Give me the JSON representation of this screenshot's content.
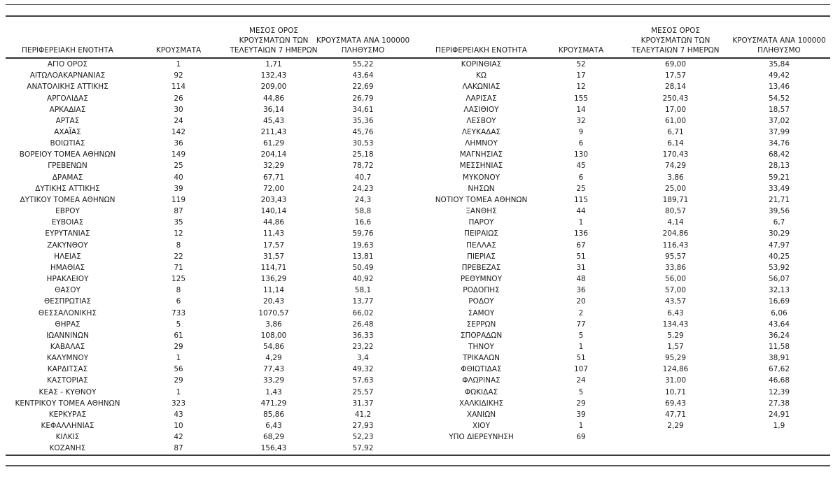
{
  "table": {
    "columns": [
      {
        "id": "region",
        "label": "ΠΕΡΙΦΕΡΕΙΑΚΗ ΕΝΟΤΗΤΑ"
      },
      {
        "id": "cases",
        "label": "ΚΡΟΥΣΜΑΤΑ"
      },
      {
        "id": "avg7",
        "label": "ΜΕΣΟΣ ΟΡΟΣ\nΚΡΟΥΣΜΑΤΩΝ ΤΩΝ\nΤΕΛΕΥΤΑΙΩΝ 7 ΗΜΕΡΩΝ"
      },
      {
        "id": "per100k",
        "label": "ΚΡΟΥΣΜΑΤΑ ΑΝΑ 100000\nΠΛΗΘΥΣΜΟ"
      }
    ],
    "left_rows": [
      [
        "ΑΓΙΟ ΟΡΟΣ",
        "1",
        "1,71",
        "55,22"
      ],
      [
        "ΑΙΤΩΛΟΑΚΑΡΝΑΝΙΑΣ",
        "92",
        "132,43",
        "43,64"
      ],
      [
        "ΑΝΑΤΟΛΙΚΗΣ ΑΤΤΙΚΗΣ",
        "114",
        "209,00",
        "22,69"
      ],
      [
        "ΑΡΓΟΛΙΔΑΣ",
        "26",
        "44,86",
        "26,79"
      ],
      [
        "ΑΡΚΑΔΙΑΣ",
        "30",
        "36,14",
        "34,61"
      ],
      [
        "ΑΡΤΑΣ",
        "24",
        "45,43",
        "35,36"
      ],
      [
        "ΑΧΑΪΑΣ",
        "142",
        "211,43",
        "45,76"
      ],
      [
        "ΒΟΙΩΤΙΑΣ",
        "36",
        "61,29",
        "30,53"
      ],
      [
        "ΒΟΡΕΙΟΥ ΤΟΜΕΑ ΑΘΗΝΩΝ",
        "149",
        "204,14",
        "25,18"
      ],
      [
        "ΓΡΕΒΕΝΩΝ",
        "25",
        "32,29",
        "78,72"
      ],
      [
        "ΔΡΑΜΑΣ",
        "40",
        "67,71",
        "40,7"
      ],
      [
        "ΔΥΤΙΚΗΣ ΑΤΤΙΚΗΣ",
        "39",
        "72,00",
        "24,23"
      ],
      [
        "ΔΥΤΙΚΟΥ ΤΟΜΕΑ ΑΘΗΝΩΝ",
        "119",
        "203,43",
        "24,3"
      ],
      [
        "ΕΒΡΟΥ",
        "87",
        "140,14",
        "58,8"
      ],
      [
        "ΕΥΒΟΙΑΣ",
        "35",
        "44,86",
        "16,6"
      ],
      [
        "ΕΥΡΥΤΑΝΙΑΣ",
        "12",
        "11,43",
        "59,76"
      ],
      [
        "ΖΑΚΥΝΘΟΥ",
        "8",
        "17,57",
        "19,63"
      ],
      [
        "ΗΛΕΙΑΣ",
        "22",
        "31,57",
        "13,81"
      ],
      [
        "ΗΜΑΘΙΑΣ",
        "71",
        "114,71",
        "50,49"
      ],
      [
        "ΗΡΑΚΛΕΙΟΥ",
        "125",
        "136,29",
        "40,92"
      ],
      [
        "ΘΑΣΟΥ",
        "8",
        "11,14",
        "58,1"
      ],
      [
        "ΘΕΣΠΡΩΤΙΑΣ",
        "6",
        "20,43",
        "13,77"
      ],
      [
        "ΘΕΣΣΑΛΟΝΙΚΗΣ",
        "733",
        "1070,57",
        "66,02"
      ],
      [
        "ΘΗΡΑΣ",
        "5",
        "3,86",
        "26,48"
      ],
      [
        "ΙΩΑΝΝΙΝΩΝ",
        "61",
        "108,00",
        "36,33"
      ],
      [
        "ΚΑΒΑΛΑΣ",
        "29",
        "54,86",
        "23,22"
      ],
      [
        "ΚΑΛΥΜΝΟΥ",
        "1",
        "4,29",
        "3,4"
      ],
      [
        "ΚΑΡΔΙΤΣΑΣ",
        "56",
        "77,43",
        "49,32"
      ],
      [
        "ΚΑΣΤΟΡΙΑΣ",
        "29",
        "33,29",
        "57,63"
      ],
      [
        "ΚΕΑΣ - ΚΥΘΝΟΥ",
        "1",
        "1,43",
        "25,57"
      ],
      [
        "ΚΕΝΤΡΙΚΟΥ ΤΟΜΕΑ ΑΘΗΝΩΝ",
        "323",
        "471,29",
        "31,37"
      ],
      [
        "ΚΕΡΚΥΡΑΣ",
        "43",
        "85,86",
        "41,2"
      ],
      [
        "ΚΕΦΑΛΛΗΝΙΑΣ",
        "10",
        "6,43",
        "27,93"
      ],
      [
        "ΚΙΛΚΙΣ",
        "42",
        "68,29",
        "52,23"
      ],
      [
        "ΚΟΖΑΝΗΣ",
        "87",
        "156,43",
        "57,92"
      ]
    ],
    "right_rows": [
      [
        "ΚΟΡΙΝΘΙΑΣ",
        "52",
        "69,00",
        "35,84"
      ],
      [
        "ΚΩ",
        "17",
        "17,57",
        "49,42"
      ],
      [
        "ΛΑΚΩΝΙΑΣ",
        "12",
        "28,14",
        "13,46"
      ],
      [
        "ΛΑΡΙΣΑΣ",
        "155",
        "250,43",
        "54,52"
      ],
      [
        "ΛΑΣΙΘΙΟΥ",
        "14",
        "17,00",
        "18,57"
      ],
      [
        "ΛΕΣΒΟΥ",
        "32",
        "61,00",
        "37,02"
      ],
      [
        "ΛΕΥΚΑΔΑΣ",
        "9",
        "6,71",
        "37,99"
      ],
      [
        "ΛΗΜΝΟΥ",
        "6",
        "6,14",
        "34,76"
      ],
      [
        "ΜΑΓΝΗΣΙΑΣ",
        "130",
        "170,43",
        "68,42"
      ],
      [
        "ΜΕΣΣΗΝΙΑΣ",
        "45",
        "74,29",
        "28,13"
      ],
      [
        "ΜΥΚΟΝΟΥ",
        "6",
        "3,86",
        "59,21"
      ],
      [
        "ΝΗΣΩΝ",
        "25",
        "25,00",
        "33,49"
      ],
      [
        "ΝΟΤΙΟΥ ΤΟΜΕΑ ΑΘΗΝΩΝ",
        "115",
        "189,71",
        "21,71"
      ],
      [
        "ΞΑΝΘΗΣ",
        "44",
        "80,57",
        "39,56"
      ],
      [
        "ΠΑΡΟΥ",
        "1",
        "4,14",
        "6,7"
      ],
      [
        "ΠΕΙΡΑΙΩΣ",
        "136",
        "204,86",
        "30,29"
      ],
      [
        "ΠΕΛΛΑΣ",
        "67",
        "116,43",
        "47,97"
      ],
      [
        "ΠΙΕΡΙΑΣ",
        "51",
        "95,57",
        "40,25"
      ],
      [
        "ΠΡΕΒΕΖΑΣ",
        "31",
        "33,86",
        "53,92"
      ],
      [
        "ΡΕΘΥΜΝΟΥ",
        "48",
        "56,00",
        "56,07"
      ],
      [
        "ΡΟΔΟΠΗΣ",
        "36",
        "57,00",
        "32,13"
      ],
      [
        "ΡΟΔΟΥ",
        "20",
        "43,57",
        "16,69"
      ],
      [
        "ΣΑΜΟΥ",
        "2",
        "6,43",
        "6,06"
      ],
      [
        "ΣΕΡΡΩΝ",
        "77",
        "134,43",
        "43,64"
      ],
      [
        "ΣΠΟΡΑΔΩΝ",
        "5",
        "5,29",
        "36,24"
      ],
      [
        "ΤΗΝΟΥ",
        "1",
        "1,57",
        "11,58"
      ],
      [
        "ΤΡΙΚΑΛΩΝ",
        "51",
        "95,29",
        "38,91"
      ],
      [
        "ΦΘΙΩΤΙΔΑΣ",
        "107",
        "124,86",
        "67,62"
      ],
      [
        "ΦΛΩΡΙΝΑΣ",
        "24",
        "31,00",
        "46,68"
      ],
      [
        "ΦΩΚΙΔΑΣ",
        "5",
        "10,71",
        "12,39"
      ],
      [
        "ΧΑΛΚΙΔΙΚΗΣ",
        "29",
        "69,43",
        "27,38"
      ],
      [
        "ΧΑΝΙΩΝ",
        "39",
        "47,71",
        "24,91"
      ],
      [
        "ΧΙΟΥ",
        "1",
        "2,29",
        "1,9"
      ],
      [
        "ΥΠΟ ΔΙΕΡΕΥΝΗΣΗ",
        "69",
        "",
        ""
      ]
    ]
  }
}
